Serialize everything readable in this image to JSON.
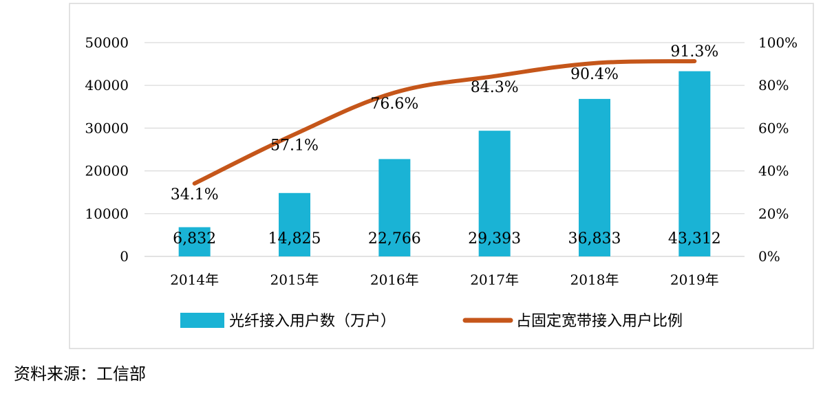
{
  "chart_data": {
    "type": "bar",
    "categories": [
      "2014年",
      "2015年",
      "2016年",
      "2017年",
      "2018年",
      "2019年"
    ],
    "series": [
      {
        "name": "光纤接入用户数（万户）",
        "type": "bar",
        "axis": "left",
        "values": [
          6832,
          14825,
          22766,
          29393,
          36833,
          43312
        ],
        "labels": [
          "6,832",
          "14,825",
          "22,766",
          "29,393",
          "36,833",
          "43,312"
        ],
        "color": "#1ab3d5"
      },
      {
        "name": "占固定宽带接入用户比例",
        "type": "line",
        "axis": "right",
        "values": [
          34.1,
          57.1,
          76.6,
          84.3,
          90.4,
          91.3
        ],
        "labels": [
          "34.1%",
          "57.1%",
          "76.6%",
          "84.3%",
          "90.4%",
          "91.3%"
        ],
        "color": "#c5561a"
      }
    ],
    "y_left": {
      "min": 0,
      "max": 50000,
      "ticks": [
        "0",
        "10000",
        "20000",
        "30000",
        "40000",
        "50000"
      ]
    },
    "y_right": {
      "min": 0,
      "max": 100,
      "ticks": [
        "0%",
        "20%",
        "40%",
        "60%",
        "80%",
        "100%"
      ]
    },
    "legend_position": "bottom",
    "grid": true
  },
  "source": "资料来源：工信部"
}
